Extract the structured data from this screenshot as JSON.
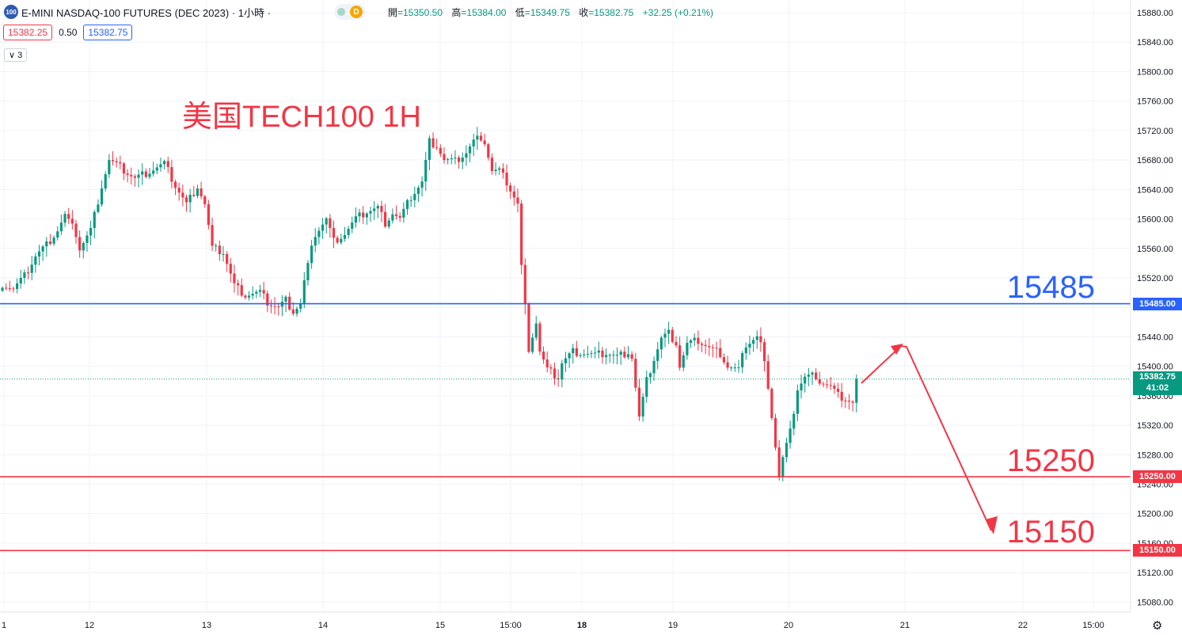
{
  "header": {
    "logo_text": "100",
    "title": "E-MINI NASDAQ-100 FUTURES (DEC 2023) · 1小時 ·",
    "status_letter": "D",
    "ohlc": [
      {
        "k": "開",
        "v": "=15350.50"
      },
      {
        "k": "高",
        "v": "=15384.00"
      },
      {
        "k": "低",
        "v": "=15349.75"
      },
      {
        "k": "收",
        "v": "=15382.75"
      },
      {
        "k": "",
        "v": "+32.25 (+0.21%)"
      }
    ]
  },
  "trade": {
    "bid": "15382.25",
    "spread": "0.50",
    "ask": "15382.75"
  },
  "indicator_toggle": "∨ 3",
  "overlay_title": "美国TECH100 1H",
  "levels": {
    "resistance": {
      "label": "15485",
      "tag": "15485.00",
      "price": 15485,
      "color": "#2962ff"
    },
    "support1": {
      "label": "15250",
      "tag": "15250.00",
      "price": 15250,
      "color": "#f23645"
    },
    "support2": {
      "label": "15150",
      "tag": "15150.00",
      "price": 15150,
      "color": "#f23645"
    }
  },
  "last_price": {
    "value": "15382.75",
    "countdown": "41:02",
    "price": 15382.75
  },
  "colors": {
    "up": "#089981",
    "down": "#f23645",
    "grid": "#f0f3fa",
    "axis_text": "#131722"
  },
  "chart_data": {
    "type": "candlestick",
    "title": "美国TECH100 1H",
    "y_ticks": [
      15080,
      15120,
      15160,
      15200,
      15240,
      15280,
      15320,
      15360,
      15400,
      15440,
      15480,
      15520,
      15560,
      15600,
      15640,
      15680,
      15720,
      15760,
      15800,
      15840,
      15880
    ],
    "y_tick_labels": [
      "15080.00",
      "15120.00",
      "15160.00",
      "15200.00",
      "15240.00",
      "15280.00",
      "15320.00",
      "15360.00",
      "15400.00",
      "15440.00",
      "15480.00",
      "15520.00",
      "15560.00",
      "15600.00",
      "15640.00",
      "15680.00",
      "15720.00",
      "15760.00",
      "15800.00",
      "15840.00",
      "15880.00"
    ],
    "ylim": [
      15060,
      15905
    ],
    "x_tick_labels": [
      "1",
      "12",
      "13",
      "14",
      "15",
      "15:00",
      "18",
      "19",
      "20",
      "21",
      "22",
      "15:00"
    ],
    "anchors": [
      [
        0,
        15512
      ],
      [
        3,
        15505
      ],
      [
        6,
        15522
      ],
      [
        9,
        15550
      ],
      [
        12,
        15565
      ],
      [
        15,
        15585
      ],
      [
        17,
        15605
      ],
      [
        20,
        15580
      ],
      [
        21,
        15560
      ],
      [
        24,
        15585
      ],
      [
        27,
        15645
      ],
      [
        29,
        15680
      ],
      [
        32,
        15670
      ],
      [
        36,
        15655
      ],
      [
        40,
        15665
      ],
      [
        44,
        15675
      ],
      [
        47,
        15645
      ],
      [
        50,
        15620
      ],
      [
        53,
        15645
      ],
      [
        55,
        15620
      ],
      [
        57,
        15560
      ],
      [
        60,
        15555
      ],
      [
        63,
        15510
      ],
      [
        66,
        15497
      ],
      [
        70,
        15500
      ],
      [
        72,
        15487
      ],
      [
        75,
        15480
      ],
      [
        77,
        15490
      ],
      [
        79,
        15475
      ],
      [
        81,
        15485
      ],
      [
        82,
        15515
      ],
      [
        85,
        15580
      ],
      [
        88,
        15600
      ],
      [
        90,
        15570
      ],
      [
        93,
        15580
      ],
      [
        96,
        15600
      ],
      [
        99,
        15610
      ],
      [
        102,
        15615
      ],
      [
        104,
        15595
      ],
      [
        106,
        15608
      ],
      [
        108,
        15600
      ],
      [
        111,
        15630
      ],
      [
        114,
        15650
      ],
      [
        116,
        15705
      ],
      [
        118,
        15700
      ],
      [
        120,
        15680
      ],
      [
        123,
        15678
      ],
      [
        126,
        15690
      ],
      [
        128,
        15705
      ],
      [
        130,
        15712
      ],
      [
        131,
        15705
      ],
      [
        133,
        15665
      ],
      [
        135,
        15665
      ],
      [
        137,
        15650
      ],
      [
        140,
        15620
      ],
      [
        141,
        15535
      ],
      [
        143,
        15425
      ],
      [
        145,
        15460
      ],
      [
        146,
        15420
      ],
      [
        148,
        15395
      ],
      [
        151,
        15385
      ],
      [
        152,
        15405
      ],
      [
        155,
        15420
      ],
      [
        158,
        15418
      ],
      [
        161,
        15415
      ],
      [
        164,
        15418
      ],
      [
        167,
        15413
      ],
      [
        170,
        15420
      ],
      [
        171,
        15412
      ],
      [
        173,
        15330
      ],
      [
        175,
        15380
      ],
      [
        177,
        15410
      ],
      [
        179,
        15438
      ],
      [
        181,
        15445
      ],
      [
        183,
        15432
      ],
      [
        184,
        15400
      ],
      [
        186,
        15430
      ],
      [
        189,
        15435
      ],
      [
        192,
        15425
      ],
      [
        195,
        15418
      ],
      [
        197,
        15400
      ],
      [
        200,
        15395
      ],
      [
        202,
        15430
      ],
      [
        205,
        15440
      ],
      [
        206,
        15430
      ],
      [
        208,
        15375
      ],
      [
        211,
        15250
      ],
      [
        212,
        15275
      ],
      [
        214,
        15310
      ],
      [
        216,
        15370
      ],
      [
        218,
        15385
      ],
      [
        221,
        15388
      ],
      [
        222,
        15380
      ],
      [
        225,
        15372
      ],
      [
        227,
        15360
      ],
      [
        229,
        15356
      ],
      [
        231,
        15350
      ],
      [
        232,
        15382.75
      ]
    ],
    "level_lines": [
      15485,
      15250,
      15150
    ],
    "last_price": 15382.75
  }
}
